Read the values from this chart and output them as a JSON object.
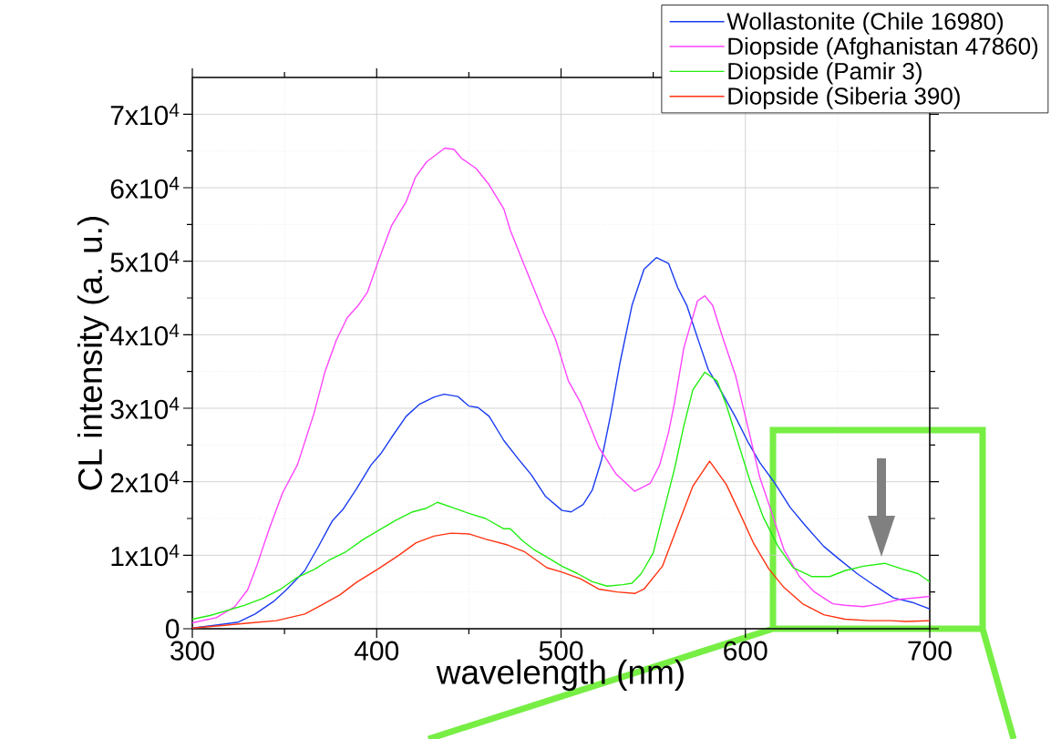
{
  "chart_data": {
    "type": "line",
    "xlabel": "wavelength (nm)",
    "ylabel": "CL intensity (a. u.)",
    "xlim": [
      300,
      700
    ],
    "xticks": [
      300,
      400,
      500,
      600,
      700
    ],
    "ylim": [
      0,
      75000
    ],
    "yticks": [
      {
        "value": 0,
        "label": "0"
      },
      {
        "value": 10000,
        "label": "1x10$^{4}$"
      },
      {
        "value": 20000,
        "label": "2x10$^{4}$"
      },
      {
        "value": 30000,
        "label": "3x10$^{4}$"
      },
      {
        "value": 40000,
        "label": "4x10$^{4}$"
      },
      {
        "value": 50000,
        "label": "5x10$^{4}$"
      },
      {
        "value": 60000,
        "label": "6x10$^{4}$"
      },
      {
        "value": 70000,
        "label": "7x10$^{4}$"
      }
    ],
    "grid": true,
    "legend": "top right",
    "marker": "none",
    "line_style": "solid",
    "series": [
      {
        "name": "Wollastonite (Chile 16980)",
        "color": "#1a3cf0",
        "x": [
          300,
          313,
          325,
          334,
          344,
          351,
          361,
          368,
          376,
          381.6,
          389,
          397,
          402.5,
          408,
          416,
          423,
          431,
          436.6,
          444,
          450,
          455,
          461,
          469,
          476.5,
          484,
          491.6,
          500.5,
          505.5,
          512,
          517,
          522,
          527,
          532,
          538.5,
          545,
          551.7,
          558.3,
          563.3,
          568.2,
          574.8,
          579.8,
          586.4,
          594.6,
          601.2,
          607.8,
          616,
          624.3,
          632.6,
          642.5,
          650.7,
          660.6,
          670.5,
          680.4,
          690.3,
          700
        ],
        "values": [
          100,
          500,
          900,
          2000,
          3700,
          5300,
          7900,
          11000,
          14700,
          16200,
          19000,
          22300,
          23900,
          26000,
          28900,
          30500,
          31500,
          31900,
          31600,
          30300,
          30100,
          28900,
          25600,
          23200,
          20900,
          18000,
          16100,
          15900,
          16900,
          18900,
          23000,
          29200,
          36200,
          44000,
          48900,
          50500,
          49700,
          46400,
          44000,
          39000,
          35300,
          32500,
          28800,
          25500,
          22600,
          19800,
          16500,
          14000,
          11200,
          9500,
          7500,
          5800,
          4200,
          3600,
          2700
        ]
      },
      {
        "name": "Diopside (Afghanistan 47860)",
        "color": "#ff44ff",
        "x": [
          300,
          313,
          323,
          330,
          335,
          342,
          349,
          357,
          366,
          372,
          378,
          384,
          390,
          395,
          401,
          408,
          416,
          421,
          427,
          437,
          442,
          446,
          454,
          461,
          469,
          472.5,
          479,
          486,
          491,
          497,
          504,
          510.5,
          515.4,
          520.4,
          530,
          540,
          548.4,
          553.4,
          558.3,
          561.6,
          566.6,
          574,
          578,
          582.2,
          588,
          594.6,
          601.2,
          607.8,
          614.4,
          621,
          629.3,
          637.5,
          647.4,
          654,
          664,
          673.8,
          683.7,
          700
        ],
        "values": [
          800,
          1500,
          3000,
          5300,
          8600,
          13800,
          18500,
          22300,
          29300,
          35000,
          39200,
          42300,
          44000,
          45800,
          50100,
          54800,
          58100,
          61400,
          63500,
          65400,
          65200,
          64000,
          62600,
          60400,
          57100,
          54200,
          50100,
          45800,
          42700,
          39400,
          33700,
          30800,
          27800,
          24700,
          21000,
          18700,
          19800,
          22200,
          26700,
          30800,
          38200,
          44600,
          45300,
          44000,
          39400,
          34500,
          27600,
          20600,
          15700,
          10700,
          7100,
          5000,
          3400,
          3200,
          3000,
          3400,
          4000,
          4400
        ]
      },
      {
        "name": "Diopside (Pamir 3)",
        "color": "#22ee11",
        "x": [
          300,
          309.5,
          319,
          328.5,
          338,
          347.4,
          357,
          366.4,
          374,
          383.5,
          393,
          400.6,
          410,
          419.5,
          427,
          433,
          442,
          450,
          459,
          469,
          472.5,
          479,
          485.7,
          494,
          500.5,
          509,
          517,
          525,
          533.5,
          538.5,
          543.5,
          550,
          555,
          561.6,
          566.6,
          571.5,
          578,
          584.7,
          589.7,
          596.3,
          602.9,
          609.5,
          617.7,
          626,
          635.9,
          645.8,
          654,
          664,
          675.5,
          685.4,
          693.6,
          700
        ],
        "values": [
          1300,
          1800,
          2500,
          3200,
          4100,
          5300,
          7000,
          8100,
          9300,
          10500,
          12200,
          13300,
          14700,
          15900,
          16400,
          17200,
          16400,
          15700,
          15000,
          13600,
          13600,
          12000,
          10700,
          9500,
          8500,
          7500,
          6400,
          5800,
          6000,
          6200,
          7500,
          10300,
          15300,
          21800,
          27600,
          32500,
          34900,
          33700,
          30400,
          25100,
          19800,
          15300,
          11200,
          8300,
          7100,
          7100,
          7900,
          8500,
          8900,
          8100,
          7500,
          6400
        ]
      },
      {
        "name": "Diopside (Siberia 390)",
        "color": "#ff3311",
        "x": [
          300,
          319,
          332,
          345.5,
          361,
          370,
          380,
          389,
          400.6,
          412,
          421.4,
          431,
          440.4,
          450,
          459,
          471,
          480,
          492.3,
          500.5,
          510.5,
          520.4,
          530.3,
          540,
          545,
          555,
          563.3,
          571.5,
          580.6,
          589.7,
          596.3,
          604.5,
          612.8,
          621,
          631,
          642.5,
          654,
          667,
          679,
          687,
          700
        ],
        "values": [
          100,
          500,
          800,
          1100,
          2000,
          3200,
          4600,
          6300,
          8100,
          10000,
          11700,
          12600,
          13000,
          12900,
          12200,
          11400,
          10500,
          8300,
          7700,
          6800,
          5400,
          5000,
          4800,
          5400,
          8500,
          14000,
          19400,
          22800,
          19600,
          16100,
          11600,
          8100,
          5600,
          3400,
          1900,
          1300,
          1100,
          1100,
          1000,
          1100
        ]
      }
    ]
  }
}
